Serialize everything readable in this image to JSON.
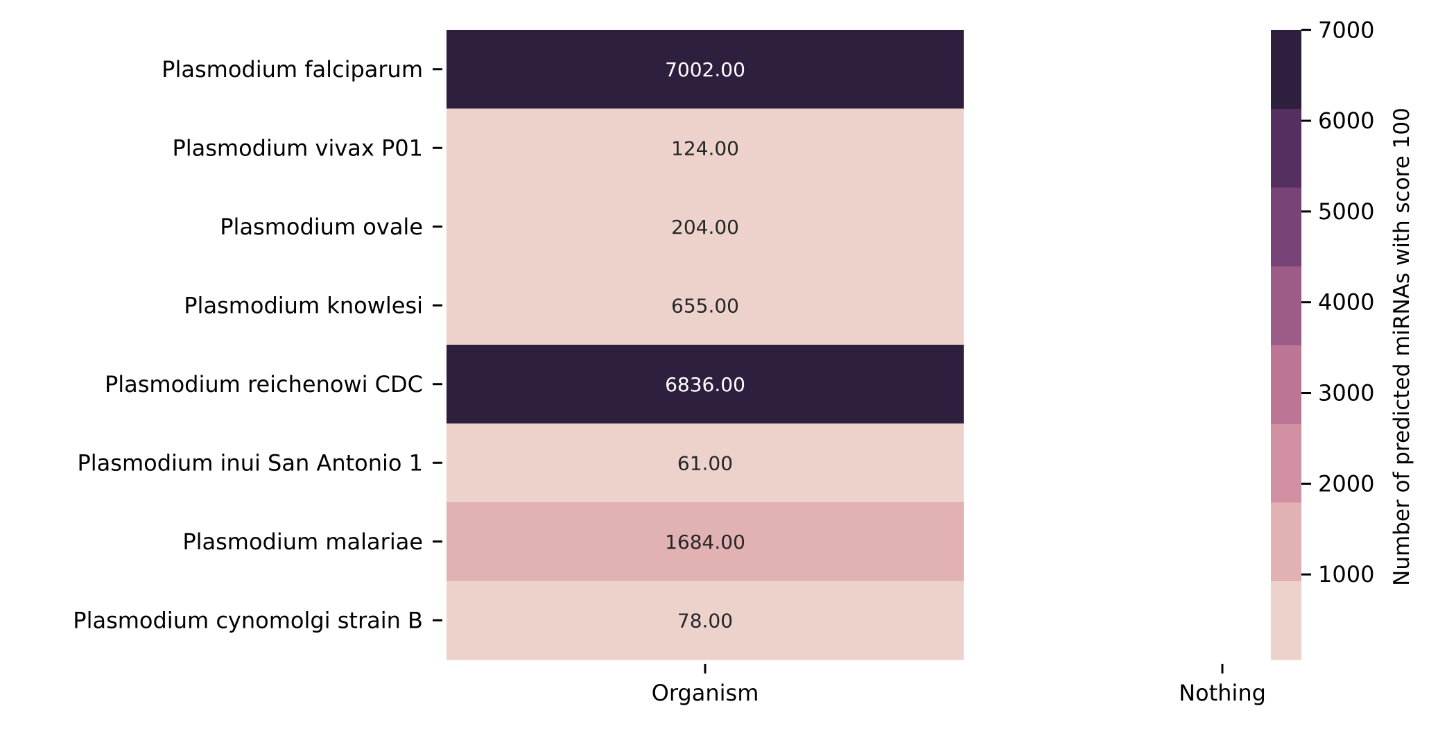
{
  "chart_data": {
    "type": "heatmap",
    "title": "",
    "columns": [
      "Organism",
      "Nothing"
    ],
    "rows": [
      "Plasmodium falciparum",
      "Plasmodium vivax P01",
      "Plasmodium ovale",
      "Plasmodium knowlesi",
      "Plasmodium reichenowi CDC",
      "Plasmodium inui San Antonio 1",
      "Plasmodium malariae",
      "Plasmodium cynomolgi strain B"
    ],
    "values": [
      7002,
      124,
      204,
      655,
      6836,
      61,
      1684,
      78
    ],
    "value_labels": [
      "7002.00",
      "124.00",
      "204.00",
      "655.00",
      "6836.00",
      "61.00",
      "1684.00",
      "78.00"
    ],
    "colorbar": {
      "label": "Number of predicted miRNAs with score 100",
      "min": 61,
      "max": 7002,
      "ticks": [
        1000,
        2000,
        3000,
        4000,
        5000,
        6000,
        7000
      ],
      "tick_labels": [
        "1000",
        "2000",
        "3000",
        "4000",
        "5000",
        "6000",
        "7000"
      ],
      "colors": [
        "#ecd2cb",
        "#e2b1b3",
        "#d190a2",
        "#bc7595",
        "#9d5b87",
        "#784478",
        "#542f60",
        "#2f1f3e"
      ]
    }
  }
}
